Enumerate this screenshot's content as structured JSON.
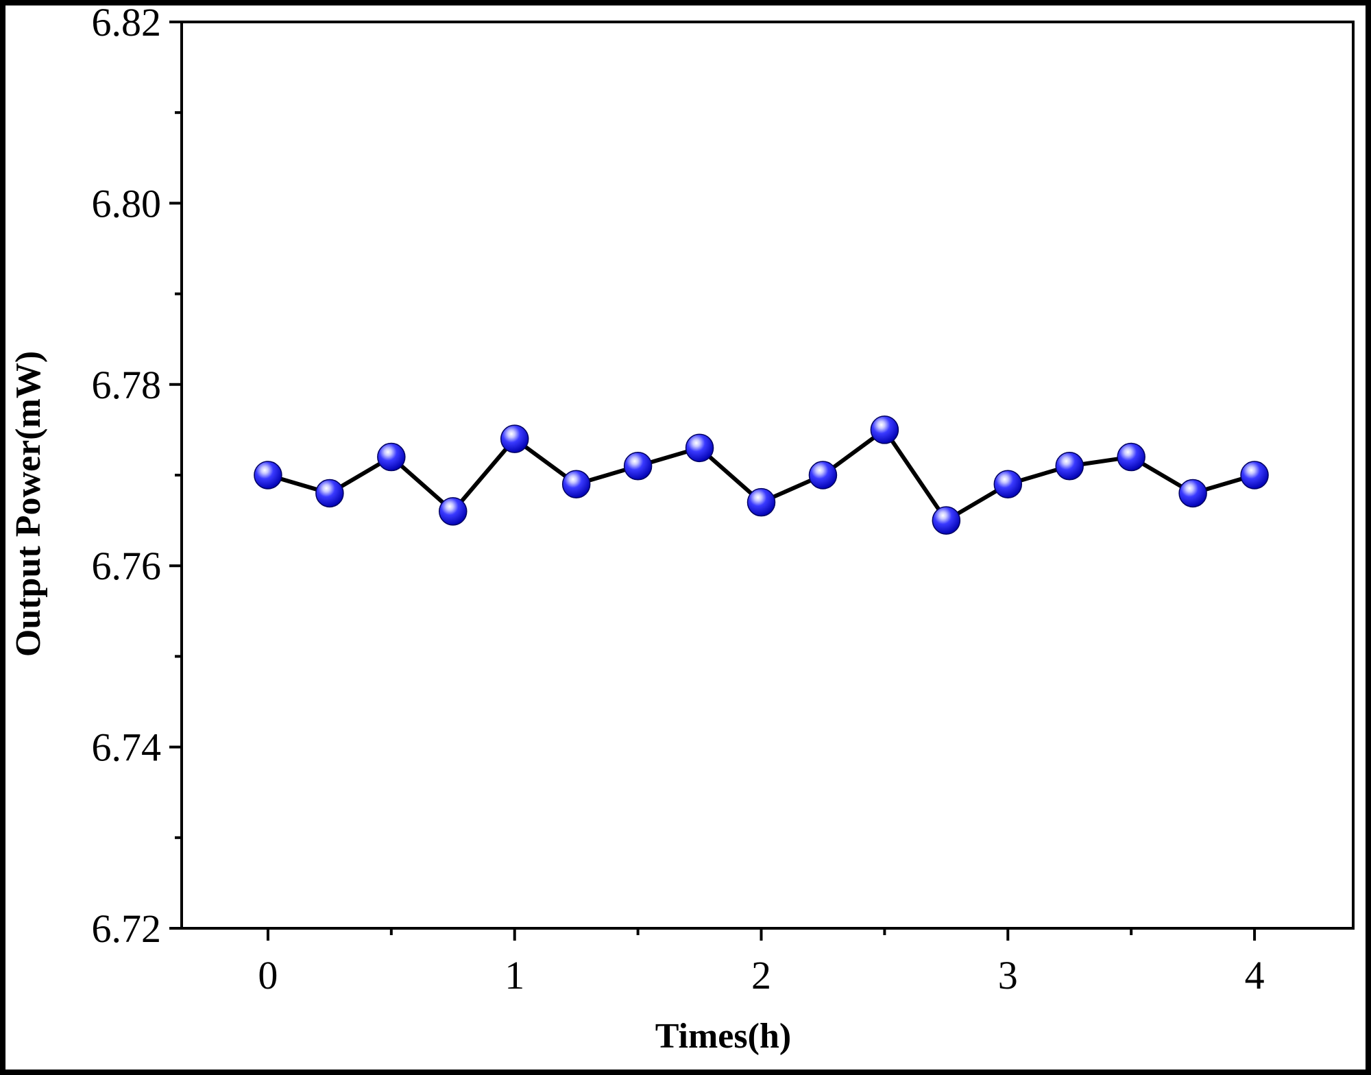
{
  "chart_data": {
    "type": "line",
    "xlabel": "Times(h)",
    "ylabel": "Output Power(mW)",
    "xlim": [
      -0.35,
      4.4
    ],
    "ylim": [
      6.72,
      6.82
    ],
    "x_ticks": [
      0,
      1,
      2,
      3,
      4
    ],
    "x_tick_labels": [
      "0",
      "1",
      "2",
      "3",
      "4"
    ],
    "y_ticks": [
      6.72,
      6.74,
      6.76,
      6.78,
      6.8,
      6.82
    ],
    "y_tick_labels": [
      "6.72",
      "6.74",
      "6.76",
      "6.78",
      "6.80",
      "6.82"
    ],
    "grid": false,
    "legend": "none",
    "series": [
      {
        "x": [
          0,
          0.25,
          0.5,
          0.75,
          1,
          1.25,
          1.5,
          1.75,
          2,
          2.25,
          2.5,
          2.75,
          3,
          3.25,
          3.5,
          3.75,
          4
        ],
        "values": [
          6.77,
          6.768,
          6.772,
          6.766,
          6.774,
          6.769,
          6.771,
          6.773,
          6.767,
          6.77,
          6.775,
          6.765,
          6.769,
          6.771,
          6.772,
          6.768,
          6.77
        ],
        "line_color": "#000000",
        "marker_color": "#1a1aff"
      }
    ]
  }
}
